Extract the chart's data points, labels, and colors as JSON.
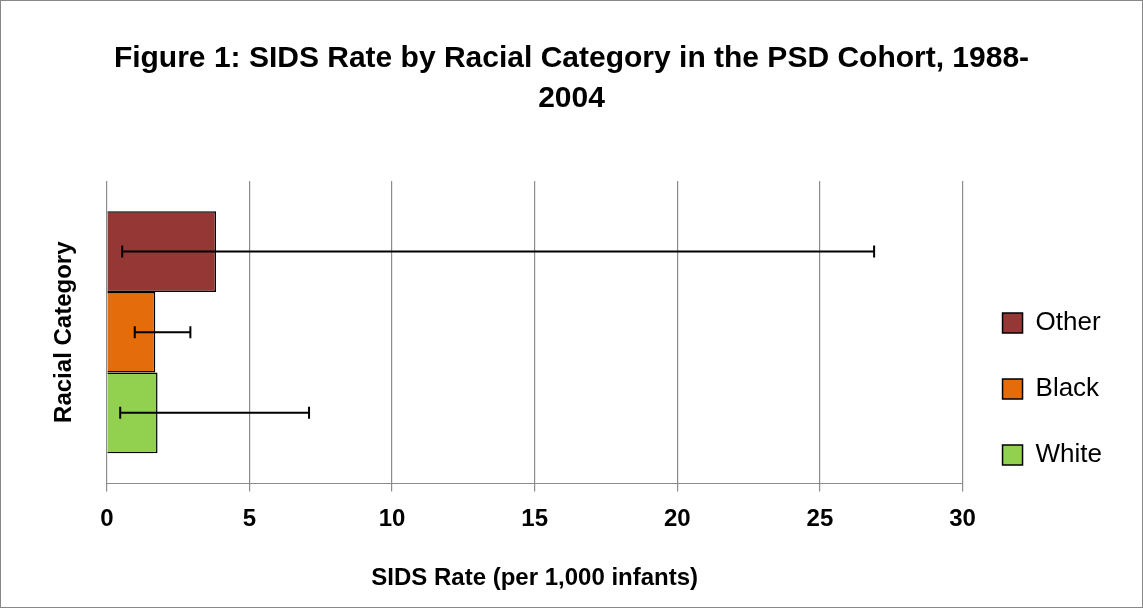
{
  "chart_data": {
    "type": "bar",
    "orientation": "horizontal",
    "title": "Figure 1: SIDS Rate by Racial Category in the PSD Cohort, 1988-2004",
    "xlabel": "SIDS Rate (per 1,000 infants)",
    "ylabel": "Racial Category",
    "categories": [
      null
    ],
    "series": [
      {
        "name": "Other",
        "color": "#953735",
        "values": [
          3.83
        ],
        "errors": [
          [
            0.54,
            26.9
          ]
        ]
      },
      {
        "name": "Black",
        "color": "#e46c0a",
        "values": [
          1.7
        ],
        "errors": [
          [
            0.98,
            2.93
          ]
        ]
      },
      {
        "name": "White",
        "color": "#92d050",
        "values": [
          1.78
        ],
        "errors": [
          [
            0.47,
            7.09
          ]
        ]
      }
    ],
    "xlim": [
      0,
      30
    ],
    "xticks": [
      0,
      5,
      10,
      15,
      20,
      25,
      30
    ],
    "grid": "x",
    "legend": "right"
  }
}
